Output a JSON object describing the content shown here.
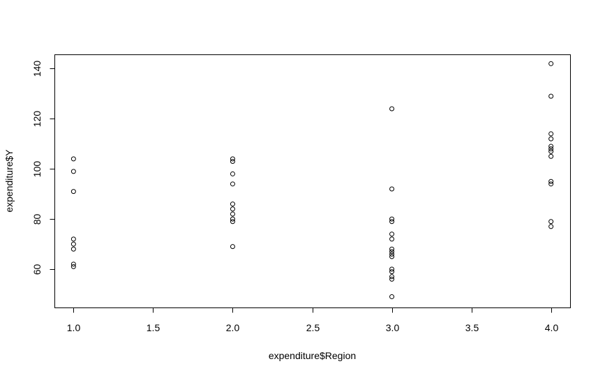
{
  "chart_data": {
    "type": "scatter",
    "title": "",
    "xlabel": "expenditure$Region",
    "ylabel": "expenditure$Y",
    "xlim": [
      0.88,
      4.12
    ],
    "ylim": [
      44.7,
      145.7
    ],
    "xticks": [
      1.0,
      1.5,
      2.0,
      2.5,
      3.0,
      3.5,
      4.0
    ],
    "xtick_labels": [
      "1.0",
      "1.5",
      "2.0",
      "2.5",
      "3.0",
      "3.5",
      "4.0"
    ],
    "yticks": [
      60,
      80,
      100,
      120,
      140
    ],
    "ytick_labels": [
      "60",
      "80",
      "100",
      "120",
      "140"
    ],
    "grid": false,
    "marker": "open-circle",
    "marker_color": "#000000",
    "series": [
      {
        "points": [
          {
            "x": 1,
            "y": 104
          },
          {
            "x": 1,
            "y": 99
          },
          {
            "x": 1,
            "y": 91
          },
          {
            "x": 1,
            "y": 72
          },
          {
            "x": 1,
            "y": 70
          },
          {
            "x": 1,
            "y": 68
          },
          {
            "x": 1,
            "y": 62
          },
          {
            "x": 1,
            "y": 61
          },
          {
            "x": 2,
            "y": 104
          },
          {
            "x": 2,
            "y": 103
          },
          {
            "x": 2,
            "y": 98
          },
          {
            "x": 2,
            "y": 94
          },
          {
            "x": 2,
            "y": 86
          },
          {
            "x": 2,
            "y": 84
          },
          {
            "x": 2,
            "y": 82
          },
          {
            "x": 2,
            "y": 80
          },
          {
            "x": 2,
            "y": 79
          },
          {
            "x": 2,
            "y": 69
          },
          {
            "x": 3,
            "y": 124
          },
          {
            "x": 3,
            "y": 92
          },
          {
            "x": 3,
            "y": 80
          },
          {
            "x": 3,
            "y": 79
          },
          {
            "x": 3,
            "y": 74
          },
          {
            "x": 3,
            "y": 72
          },
          {
            "x": 3,
            "y": 68
          },
          {
            "x": 3,
            "y": 67
          },
          {
            "x": 3,
            "y": 66
          },
          {
            "x": 3,
            "y": 65
          },
          {
            "x": 3,
            "y": 60
          },
          {
            "x": 3,
            "y": 59
          },
          {
            "x": 3,
            "y": 57
          },
          {
            "x": 3,
            "y": 56
          },
          {
            "x": 3,
            "y": 49
          },
          {
            "x": 4,
            "y": 142
          },
          {
            "x": 4,
            "y": 129
          },
          {
            "x": 4,
            "y": 114
          },
          {
            "x": 4,
            "y": 112
          },
          {
            "x": 4,
            "y": 109
          },
          {
            "x": 4,
            "y": 108
          },
          {
            "x": 4,
            "y": 107
          },
          {
            "x": 4,
            "y": 105
          },
          {
            "x": 4,
            "y": 95
          },
          {
            "x": 4,
            "y": 94
          },
          {
            "x": 4,
            "y": 79
          },
          {
            "x": 4,
            "y": 77
          }
        ]
      }
    ]
  }
}
